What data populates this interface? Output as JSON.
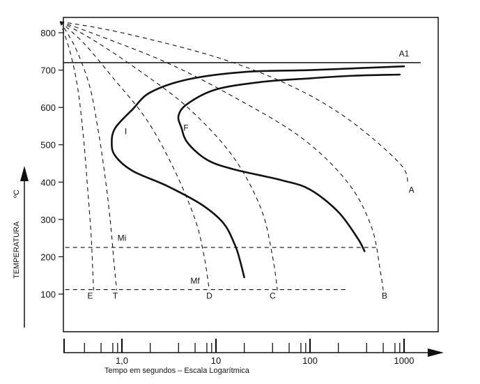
{
  "chart_data": {
    "type": "line",
    "x_scale": "log",
    "y_tick_labels": [
      "100",
      "200",
      "300",
      "400",
      "500",
      "600",
      "700",
      "800"
    ],
    "y_ticks": [
      100,
      200,
      300,
      400,
      500,
      600,
      700,
      800
    ],
    "ylim": [
      0,
      870
    ],
    "y_unit": "ºC",
    "ylabel": "TEMPERATURA",
    "x_tick_labels": [
      {
        "value": 1,
        "label": "1,0"
      },
      {
        "value": 10,
        "label": "10"
      },
      {
        "value": 100,
        "label": "100"
      },
      {
        "value": 1000,
        "label": "1000"
      }
    ],
    "x_minor_ticks": [
      0.4,
      0.6,
      0.8,
      0.9,
      2,
      4,
      6,
      8,
      9,
      20,
      40,
      60,
      80,
      90,
      200,
      400,
      600,
      800,
      900
    ],
    "xlim": [
      0.2,
      1500
    ],
    "xlabel": "Tempo em segundos – Escala Logarítmica",
    "reference_lines": [
      {
        "label": "A1",
        "y": 720,
        "x_range": [
          0.2,
          1500
        ],
        "style": "solid"
      },
      {
        "label": "Mi",
        "y": 225,
        "x_range": [
          0.25,
          500
        ],
        "style": "dashed"
      },
      {
        "label": "Mf",
        "y": 112,
        "x_range": [
          0.25,
          250
        ],
        "style": "dashed"
      }
    ],
    "transformation_curves": [
      {
        "label": "I",
        "points": [
          [
            1000,
            710
          ],
          [
            500,
            707
          ],
          [
            100,
            700
          ],
          [
            20,
            695
          ],
          [
            5,
            675
          ],
          [
            2,
            640
          ],
          [
            1.3,
            595
          ],
          [
            0.85,
            545
          ],
          [
            0.78,
            505
          ],
          [
            0.85,
            470
          ],
          [
            1.3,
            430
          ],
          [
            3,
            390
          ],
          [
            7,
            340
          ],
          [
            12,
            290
          ],
          [
            16,
            230
          ],
          [
            18,
            190
          ],
          [
            20,
            145
          ]
        ]
      },
      {
        "label": "F",
        "points": [
          [
            900,
            688
          ],
          [
            300,
            685
          ],
          [
            100,
            678
          ],
          [
            30,
            668
          ],
          [
            10,
            648
          ],
          [
            5,
            610
          ],
          [
            4,
            578
          ],
          [
            4.3,
            545
          ],
          [
            5,
            505
          ],
          [
            8,
            460
          ],
          [
            15,
            435
          ],
          [
            50,
            405
          ],
          [
            100,
            380
          ],
          [
            200,
            320
          ],
          [
            320,
            250
          ],
          [
            380,
            215
          ]
        ]
      }
    ],
    "cooling_curves": [
      {
        "label": "A",
        "points": [
          [
            0.22,
            830
          ],
          [
            1,
            800
          ],
          [
            10,
            735
          ],
          [
            60,
            660
          ],
          [
            250,
            570
          ],
          [
            900,
            450
          ],
          [
            1100,
            395
          ]
        ]
      },
      {
        "label": "B",
        "points": [
          [
            0.22,
            830
          ],
          [
            0.6,
            790
          ],
          [
            3,
            720
          ],
          [
            15,
            630
          ],
          [
            80,
            520
          ],
          [
            250,
            400
          ],
          [
            450,
            280
          ],
          [
            560,
            160
          ],
          [
            600,
            110
          ]
        ]
      },
      {
        "label": "C",
        "points": [
          [
            0.22,
            830
          ],
          [
            0.5,
            780
          ],
          [
            1.5,
            700
          ],
          [
            5,
            600
          ],
          [
            15,
            470
          ],
          [
            30,
            330
          ],
          [
            40,
            200
          ],
          [
            45,
            110
          ]
        ]
      },
      {
        "label": "D",
        "points": [
          [
            0.22,
            830
          ],
          [
            0.4,
            770
          ],
          [
            0.8,
            680
          ],
          [
            1.8,
            570
          ],
          [
            3.5,
            440
          ],
          [
            6,
            300
          ],
          [
            7.5,
            200
          ],
          [
            8.5,
            110
          ]
        ]
      },
      {
        "label": "T",
        "points": [
          [
            0.22,
            830
          ],
          [
            0.32,
            760
          ],
          [
            0.45,
            660
          ],
          [
            0.55,
            550
          ],
          [
            0.65,
            430
          ],
          [
            0.75,
            300
          ],
          [
            0.82,
            190
          ],
          [
            0.88,
            110
          ]
        ]
      },
      {
        "label": "E",
        "points": [
          [
            0.22,
            830
          ],
          [
            0.28,
            750
          ],
          [
            0.34,
            650
          ],
          [
            0.39,
            520
          ],
          [
            0.43,
            390
          ],
          [
            0.47,
            260
          ],
          [
            0.49,
            160
          ],
          [
            0.5,
            110
          ]
        ]
      }
    ],
    "curve_label_positions": {
      "A": [
        1200,
        372
      ],
      "B": [
        620,
        88
      ],
      "C": [
        40,
        88
      ],
      "D": [
        8.5,
        88
      ],
      "T": [
        0.85,
        88
      ],
      "E": [
        0.46,
        88
      ],
      "I": [
        1.1,
        528
      ],
      "F": [
        4.8,
        538
      ],
      "Mi": [
        1.0,
        243
      ],
      "Mf": [
        6.0,
        128
      ],
      "A1": [
        1000,
        737
      ]
    },
    "grid": false,
    "legend": "none"
  }
}
